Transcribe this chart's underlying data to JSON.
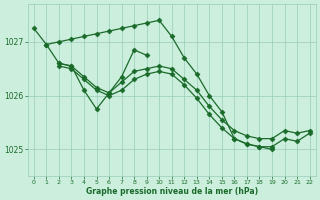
{
  "title": "Graphe pression niveau de la mer (hPa)",
  "bg_color": "#cceedd",
  "line_color": "#1a6b2a",
  "grid_color": "#99ccbb",
  "xlim": [
    -0.5,
    22.5
  ],
  "ylim": [
    1024.5,
    1027.7
  ],
  "yticks": [
    1025,
    1026,
    1027
  ],
  "xticks": [
    0,
    1,
    2,
    3,
    4,
    5,
    6,
    7,
    8,
    9,
    10,
    11,
    12,
    13,
    14,
    15,
    16,
    17,
    18,
    19,
    20,
    21,
    22
  ],
  "series": [
    {
      "x": [
        0,
        1,
        2,
        3,
        4,
        5,
        6,
        7,
        8,
        9,
        10,
        11,
        12,
        13,
        14,
        15,
        16,
        17,
        18,
        19
      ],
      "y": [
        1027.25,
        1026.95,
        1027.0,
        1027.05,
        1027.1,
        1027.15,
        1027.2,
        1027.25,
        1027.3,
        1027.35,
        1027.4,
        1027.1,
        1026.7,
        1026.4,
        1026.0,
        1025.7,
        1025.2,
        1025.1,
        1025.05,
        1025.0
      ]
    },
    {
      "x": [
        1,
        2,
        3,
        4,
        5,
        6,
        7,
        8,
        9
      ],
      "y": [
        1026.95,
        1026.6,
        1026.55,
        1026.1,
        1025.75,
        1026.05,
        1026.35,
        1026.85,
        1026.75
      ]
    },
    {
      "x": [
        2,
        3,
        4,
        5,
        6,
        7,
        8,
        9,
        10,
        11,
        12,
        13,
        14,
        15,
        16,
        17,
        18,
        19,
        20,
        21,
        22
      ],
      "y": [
        1026.6,
        1026.55,
        1026.35,
        1026.15,
        1026.05,
        1026.25,
        1026.45,
        1026.5,
        1026.55,
        1026.5,
        1026.3,
        1026.1,
        1025.8,
        1025.55,
        1025.35,
        1025.25,
        1025.2,
        1025.2,
        1025.35,
        1025.3,
        1025.35
      ]
    },
    {
      "x": [
        2,
        3,
        4,
        5,
        6,
        7,
        8,
        9,
        10,
        11,
        12,
        13,
        14,
        15,
        16,
        17,
        18,
        19,
        20,
        21,
        22
      ],
      "y": [
        1026.55,
        1026.5,
        1026.3,
        1026.1,
        1026.0,
        1026.1,
        1026.3,
        1026.4,
        1026.45,
        1026.4,
        1026.2,
        1025.95,
        1025.65,
        1025.4,
        1025.2,
        1025.1,
        1025.05,
        1025.05,
        1025.2,
        1025.15,
        1025.3
      ]
    }
  ],
  "marker": "D",
  "markersize": 2.5,
  "linewidth": 0.9
}
